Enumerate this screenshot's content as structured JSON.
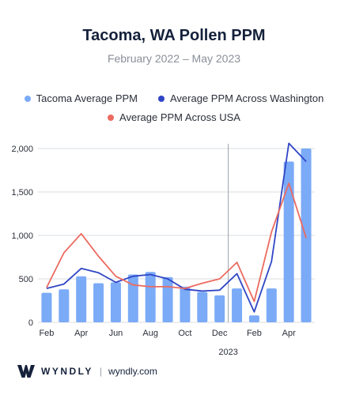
{
  "chart_data": {
    "type": "bar",
    "title": "Tacoma, WA Pollen PPM",
    "subtitle": "February 2022 – May 2023",
    "xlabel": "",
    "ylabel": "",
    "ylim": [
      0,
      2000
    ],
    "y_ticks": [
      "0",
      "500",
      "1,000",
      "1,500",
      "2,000"
    ],
    "y_tick_values": [
      0,
      500,
      1000,
      1500,
      2000
    ],
    "categories": [
      "Feb 2022",
      "Mar 2022",
      "Apr 2022",
      "May 2022",
      "Jun 2022",
      "Jul 2022",
      "Aug 2022",
      "Sep 2022",
      "Oct 2022",
      "Nov 2022",
      "Dec 2022",
      "Jan 2023",
      "Feb 2023",
      "Mar 2023",
      "Apr 2023",
      "May 2023"
    ],
    "x_tick_labels": [
      {
        "index": 0,
        "label": "Feb"
      },
      {
        "index": 2,
        "label": "Apr"
      },
      {
        "index": 4,
        "label": "Jun"
      },
      {
        "index": 6,
        "label": "Aug"
      },
      {
        "index": 8,
        "label": "Oct"
      },
      {
        "index": 10,
        "label": "Dec"
      },
      {
        "index": 12,
        "label": "Feb"
      },
      {
        "index": 14,
        "label": "Apr"
      }
    ],
    "year_marker": {
      "after_index": 10,
      "label": "2023"
    },
    "grid": "horizontal",
    "legend_position": "top",
    "series": [
      {
        "name": "Tacoma Average PPM",
        "kind": "bar",
        "color": "#7baaf7",
        "values": [
          340,
          380,
          530,
          450,
          460,
          550,
          580,
          520,
          410,
          350,
          310,
          390,
          80,
          390,
          1850,
          2000
        ]
      },
      {
        "name": "Average PPM Across Washington",
        "kind": "line",
        "color": "#2f45c5",
        "values": [
          390,
          440,
          620,
          570,
          460,
          530,
          550,
          500,
          380,
          360,
          370,
          560,
          120,
          700,
          2060,
          1850
        ]
      },
      {
        "name": "Average PPM Across USA",
        "kind": "line",
        "color": "#ec6b60",
        "values": [
          400,
          800,
          1020,
          760,
          530,
          430,
          410,
          410,
          390,
          450,
          500,
          690,
          240,
          1040,
          1600,
          970
        ]
      }
    ]
  },
  "footer": {
    "logo_text": "WYNDLY",
    "separator": "|",
    "url": "wyndly.com"
  },
  "colors": {
    "title": "#15213b",
    "subtitle": "#8a8f99",
    "axis": "#d9dce2"
  }
}
